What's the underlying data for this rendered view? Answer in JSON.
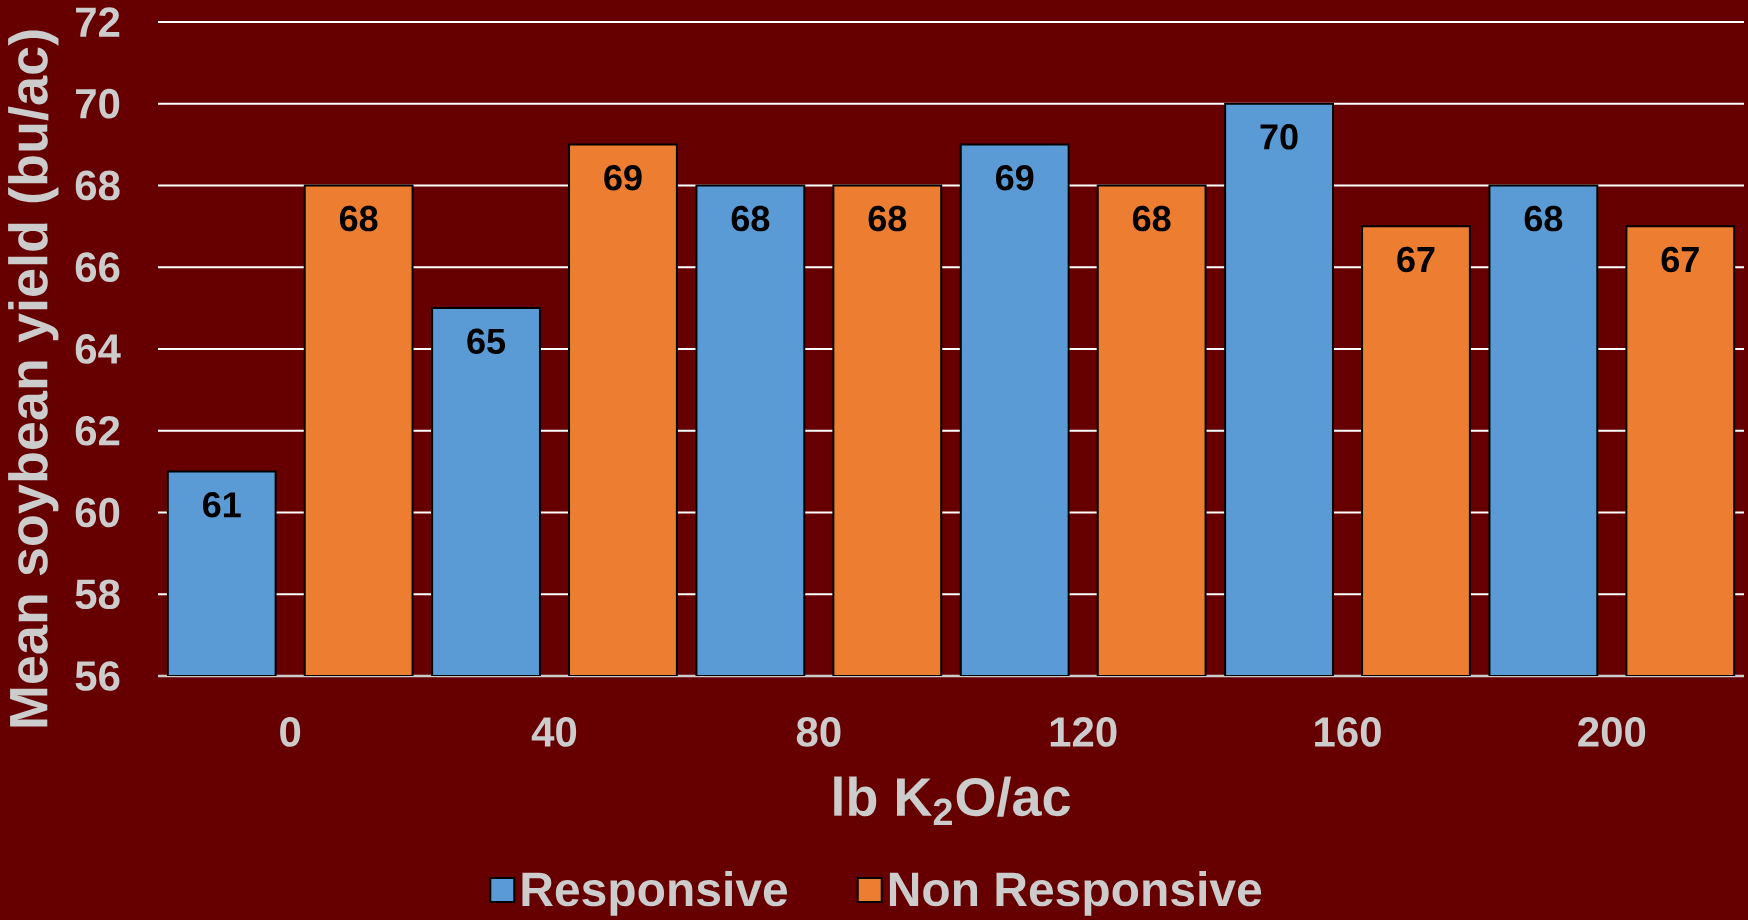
{
  "chart_data": {
    "type": "bar",
    "xlabel": "lb K$_{2}$O/ac",
    "ylabel": "Mean soybean yield (bu/ac)",
    "categories": [
      "0",
      "40",
      "80",
      "120",
      "160",
      "200"
    ],
    "series": [
      {
        "name": "Responsive",
        "color": "#5b9bd5",
        "values": [
          61,
          65,
          68,
          69,
          70,
          68
        ]
      },
      {
        "name": "Non Responsive",
        "color": "#ed7d31",
        "values": [
          68,
          69,
          68,
          68,
          67,
          67
        ]
      }
    ],
    "ylim": [
      56,
      72
    ],
    "yticks": [
      56,
      58,
      60,
      62,
      64,
      66,
      68,
      70,
      72
    ],
    "grid": "y",
    "legend": "bottom",
    "data_labels": true
  }
}
